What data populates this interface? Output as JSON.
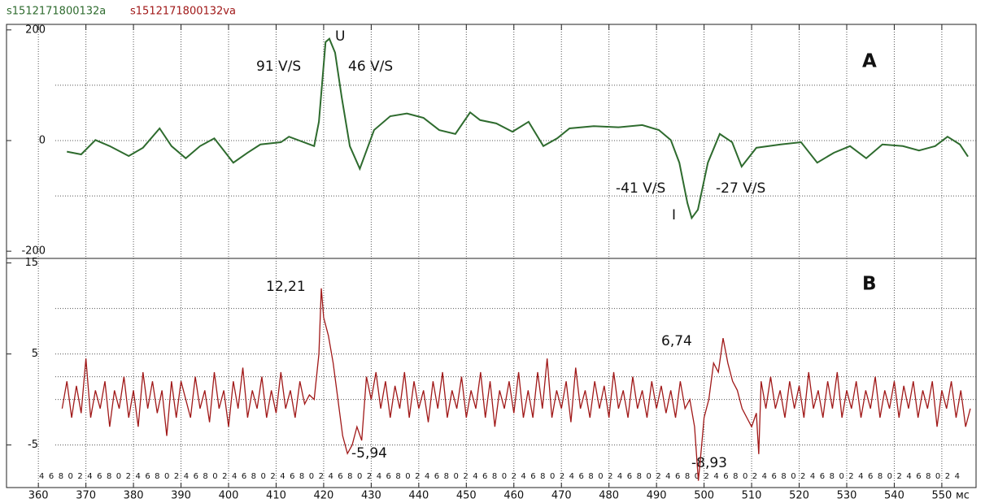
{
  "legend_row": [
    "s1512171800132a",
    "s1512171800132va"
  ],
  "chart_data": [
    {
      "type": "line",
      "panel_label": "A",
      "series": [
        {
          "name": "s1512171800132a",
          "color": "#2e6b2e",
          "x": [
            366,
            369,
            372,
            375,
            379,
            382,
            385.5,
            388,
            391,
            394,
            397,
            401,
            404,
            406.7,
            411,
            412.7,
            418,
            419,
            420.4,
            421.2,
            422.4,
            423.8,
            425.5,
            427.6,
            430.6,
            434,
            437.5,
            441,
            444.3,
            447.7,
            450.8,
            452.9,
            456.3,
            459.7,
            463.1,
            466.2,
            469.1,
            471.7,
            476.8,
            482,
            487,
            490.5,
            493,
            494.8,
            496.5,
            497.4,
            498.7,
            500.8,
            503.3,
            505.9,
            507.9,
            511,
            516.1,
            520.4,
            523.8,
            527.3,
            530.7,
            534.1,
            537.5,
            541.8,
            545.2,
            548.6,
            551.2,
            553.8,
            555.5
          ],
          "values": [
            -20,
            -25,
            1,
            -10,
            -28,
            -13,
            22,
            -10,
            -32,
            -10,
            4,
            -40,
            -22,
            -7,
            -3,
            7,
            -10,
            34,
            178,
            184,
            159,
            78,
            -10,
            -51,
            19,
            44,
            49,
            41,
            19,
            12,
            51,
            37,
            31,
            16,
            34,
            -10,
            4,
            22,
            26,
            24,
            28,
            19,
            1,
            -40,
            -113,
            -140,
            -125,
            -40,
            12,
            -3,
            -47,
            -13,
            -7,
            -3,
            -40,
            -22,
            -10,
            -32,
            -7,
            -10,
            -18,
            -10,
            7,
            -7,
            -29
          ]
        }
      ],
      "xlim": [
        353.3,
        557.2
      ],
      "ylim": [
        -213,
        210
      ],
      "yticks": [
        -200,
        0,
        200
      ],
      "grid_lines": [
        -100,
        0,
        100
      ],
      "annotations": [
        "U",
        "91 V/S",
        "46 V/S",
        "-41 V/S",
        "-27 V/S",
        "I"
      ]
    },
    {
      "type": "line",
      "panel_label": "B",
      "series": [
        {
          "name": "s1512171800132va",
          "color": "#a01818",
          "x": [
            365,
            366,
            367,
            368,
            369,
            370,
            371,
            372,
            373,
            374,
            375,
            376,
            377,
            378,
            379,
            380,
            381,
            382,
            383,
            384,
            385,
            386,
            387,
            388,
            389,
            390,
            391,
            392,
            393,
            394,
            395,
            396,
            397,
            398,
            399,
            400,
            401,
            402,
            403,
            404,
            405,
            406,
            407,
            408,
            409,
            410,
            411,
            412,
            413,
            414,
            415,
            416,
            417,
            418,
            419,
            419.5,
            420,
            421,
            422,
            423,
            424,
            425,
            426,
            427,
            428,
            429,
            430,
            431,
            432,
            433,
            434,
            435,
            436,
            437,
            438,
            439,
            440,
            441,
            442,
            443,
            444,
            445,
            446,
            447,
            448,
            449,
            450,
            451,
            452,
            453,
            454,
            455,
            456,
            457,
            458,
            459,
            460,
            461,
            462,
            463,
            464,
            465,
            466,
            467,
            468,
            469,
            470,
            471,
            472,
            473,
            474,
            475,
            476,
            477,
            478,
            479,
            480,
            481,
            482,
            483,
            484,
            485,
            486,
            487,
            488,
            489,
            490,
            491,
            492,
            493,
            494,
            495,
            496,
            497,
            498,
            498.8,
            499.5,
            500,
            501,
            502,
            503,
            504,
            505,
            506,
            507,
            508,
            509,
            510,
            511,
            511.5,
            512,
            513,
            514,
            515,
            516,
            517,
            518,
            519,
            520,
            521,
            522,
            523,
            524,
            525,
            526,
            527,
            528,
            529,
            530,
            531,
            532,
            533,
            534,
            535,
            536,
            537,
            538,
            539,
            540,
            541,
            542,
            543,
            544,
            545,
            546,
            547,
            548,
            549,
            550,
            551,
            552,
            553,
            554,
            555,
            556
          ],
          "values": [
            -1,
            2,
            -2,
            1.5,
            -1.5,
            4.5,
            -2,
            1,
            -1,
            2,
            -3,
            1,
            -1,
            2.5,
            -2,
            1,
            -3,
            3,
            -1,
            2,
            -1.5,
            1,
            -4,
            2,
            -2,
            2,
            0,
            -2,
            2.5,
            -1,
            1,
            -2.5,
            3,
            -1,
            1,
            -3,
            2,
            -1,
            3.5,
            -2,
            1,
            -1,
            2.5,
            -2,
            1,
            -1.5,
            3,
            -1,
            1,
            -2,
            2,
            -0.5,
            0.5,
            0,
            5,
            12.21,
            9,
            7,
            4,
            0,
            -4,
            -5.94,
            -5,
            -3,
            -4.5,
            2.5,
            0,
            3,
            -1,
            2,
            -2,
            1.5,
            -1,
            3,
            -2,
            2,
            -1,
            1,
            -2.5,
            2,
            -1,
            3,
            -2,
            1,
            -1,
            2.5,
            -2,
            1,
            -1,
            3,
            -2,
            2,
            -3,
            1,
            -1,
            2,
            -1.5,
            3,
            -2,
            1,
            -2,
            3,
            -1,
            4.5,
            -2,
            1,
            -1,
            2,
            -2.5,
            3.5,
            -1,
            1,
            -2,
            2,
            -1,
            1.5,
            -2,
            3,
            -1,
            1,
            -2,
            2.5,
            -1,
            1,
            -2,
            2,
            -1,
            1.5,
            -1.5,
            1,
            -2,
            2,
            -1,
            0,
            -3,
            -8.93,
            -5,
            -2,
            0,
            4,
            3,
            6.74,
            4,
            2,
            1,
            -1,
            -2,
            -3,
            -1.5,
            -6,
            2,
            -1,
            2.5,
            -1,
            1,
            -2,
            2,
            -1,
            1.5,
            -2,
            3,
            -1,
            1,
            -2,
            2,
            -1,
            3,
            -2,
            1,
            -1,
            2,
            -2,
            1,
            -1,
            2.5,
            -2,
            1,
            -1,
            2,
            -2,
            1.5,
            -1,
            2,
            -2,
            1,
            -1,
            2,
            -3,
            1,
            -1,
            2,
            -2,
            1,
            -3,
            -1
          ]
        }
      ],
      "xlim": [
        353.3,
        557.2
      ],
      "ylim": [
        -9.5,
        15.5
      ],
      "yticks": [
        -5,
        5,
        15
      ],
      "grid_lines": [
        -5,
        0,
        2.5,
        5,
        10
      ],
      "xticks": [
        360,
        370,
        380,
        390,
        400,
        410,
        420,
        430,
        440,
        450,
        460,
        470,
        480,
        490,
        500,
        510,
        520,
        530,
        540,
        550
      ],
      "x_label": "мс",
      "x_minor_label_row": "4 6 8 0 2 4 6 8 0 2 4 6 8 0 2 4 6 8 0 2 4 6 8 0 2 4 6 8 0 2 4 6 8 0 2 4 6 8 0 2 4 6 8 0 2 4 6 8 0 2 4 6 8 0 2 4 6 8 0 2 4 6 8 0 2 4 6 8 0 2 4 6 8 0 2 4 6 8 0 2 4 6 8 0 2 4 6 8 0 2 4 6 8 0 2 4",
      "annotations": [
        "12,21",
        "-5,94",
        "6,74",
        "-8,93"
      ]
    }
  ]
}
